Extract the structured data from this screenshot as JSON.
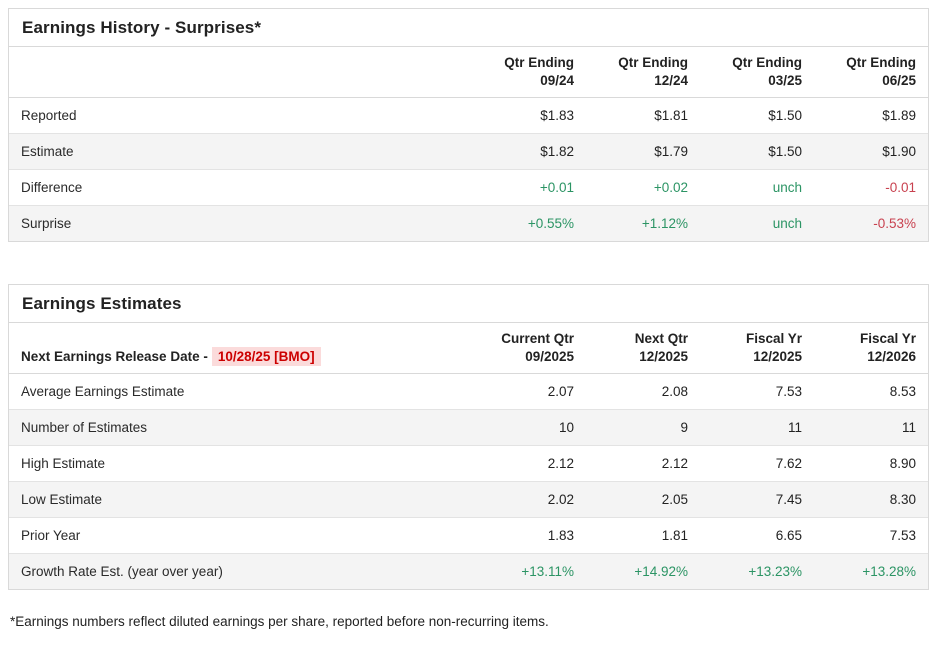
{
  "colors": {
    "positive": "#2b9464",
    "negative": "#c8414f",
    "alert_red": "#cc0000",
    "alert_bg": "#fbdbdb",
    "row_alt_bg": "#f4f4f4",
    "border": "#d9d9d9",
    "text": "#222222"
  },
  "history_table": {
    "title": "Earnings History - Surprises*",
    "columns": [
      {
        "line1": "Qtr Ending",
        "line2": "09/24"
      },
      {
        "line1": "Qtr Ending",
        "line2": "12/24"
      },
      {
        "line1": "Qtr Ending",
        "line2": "03/25"
      },
      {
        "line1": "Qtr Ending",
        "line2": "06/25"
      }
    ],
    "rows": [
      {
        "label": "Reported",
        "values": [
          "$1.83",
          "$1.81",
          "$1.50",
          "$1.89"
        ],
        "tones": [
          "normal",
          "normal",
          "normal",
          "normal"
        ]
      },
      {
        "label": "Estimate",
        "values": [
          "$1.82",
          "$1.79",
          "$1.50",
          "$1.90"
        ],
        "tones": [
          "normal",
          "normal",
          "normal",
          "normal"
        ]
      },
      {
        "label": "Difference",
        "values": [
          "+0.01",
          "+0.02",
          "unch",
          "-0.01"
        ],
        "tones": [
          "positive",
          "positive",
          "positive",
          "negative"
        ]
      },
      {
        "label": "Surprise",
        "values": [
          "+0.55%",
          "+1.12%",
          "unch",
          "-0.53%"
        ],
        "tones": [
          "positive",
          "positive",
          "positive",
          "negative"
        ]
      }
    ]
  },
  "estimates_table": {
    "title": "Earnings Estimates",
    "release_label": "Next Earnings Release Date -",
    "release_date": "10/28/25 [BMO]",
    "columns": [
      {
        "line1": "Current Qtr",
        "line2": "09/2025"
      },
      {
        "line1": "Next Qtr",
        "line2": "12/2025"
      },
      {
        "line1": "Fiscal Yr",
        "line2": "12/2025"
      },
      {
        "line1": "Fiscal Yr",
        "line2": "12/2026"
      }
    ],
    "rows": [
      {
        "label": "Average Earnings Estimate",
        "values": [
          "2.07",
          "2.08",
          "7.53",
          "8.53"
        ],
        "tones": [
          "normal",
          "normal",
          "normal",
          "normal"
        ]
      },
      {
        "label": "Number of Estimates",
        "values": [
          "10",
          "9",
          "11",
          "11"
        ],
        "tones": [
          "normal",
          "normal",
          "normal",
          "normal"
        ]
      },
      {
        "label": "High Estimate",
        "values": [
          "2.12",
          "2.12",
          "7.62",
          "8.90"
        ],
        "tones": [
          "normal",
          "normal",
          "normal",
          "normal"
        ]
      },
      {
        "label": "Low Estimate",
        "values": [
          "2.02",
          "2.05",
          "7.45",
          "8.30"
        ],
        "tones": [
          "normal",
          "normal",
          "normal",
          "normal"
        ]
      },
      {
        "label": "Prior Year",
        "values": [
          "1.83",
          "1.81",
          "6.65",
          "7.53"
        ],
        "tones": [
          "normal",
          "normal",
          "normal",
          "normal"
        ]
      },
      {
        "label": "Growth Rate Est. (year over year)",
        "values": [
          "+13.11%",
          "+14.92%",
          "+13.23%",
          "+13.28%"
        ],
        "tones": [
          "positive",
          "positive",
          "positive",
          "positive"
        ]
      }
    ]
  },
  "footnote": "*Earnings numbers reflect diluted earnings per share, reported before non-recurring items."
}
